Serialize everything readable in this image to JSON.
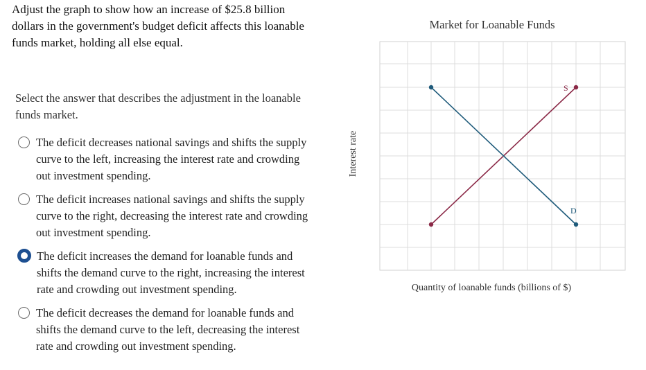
{
  "question": "Adjust the graph to show how an increase of $25.8 billion dollars in the government's budget deficit affects this loanable funds market, holding all else equal.",
  "instruction": "Select the answer that describes the adjustment in the loanable funds market.",
  "options": [
    {
      "text": "The deficit decreases national savings and shifts the supply curve to the left, increasing the interest rate and crowding out investment spending.",
      "selected": false
    },
    {
      "text": "The deficit increases national savings and shifts the supply curve to the right, decreasing the interest rate and crowding out investment spending.",
      "selected": false
    },
    {
      "text": "The deficit increases the demand for loanable funds and shifts the demand curve to the right, increasing the interest rate and crowding out investment spending.",
      "selected": true
    },
    {
      "text": "The deficit decreases the demand for loanable funds and shifts the demand curve to the left, decreasing the interest rate and crowding out investment spending.",
      "selected": false
    }
  ],
  "graph": {
    "title": "Market for Loanable Funds",
    "xlabel": "Quantity of loanable funds (billions of $)",
    "ylabel": "Interest rate",
    "supply_label": "S",
    "demand_label": "D",
    "colors": {
      "supply": "#8a2846",
      "demand": "#1e5a7a",
      "grid": "#d9d9d9"
    }
  }
}
